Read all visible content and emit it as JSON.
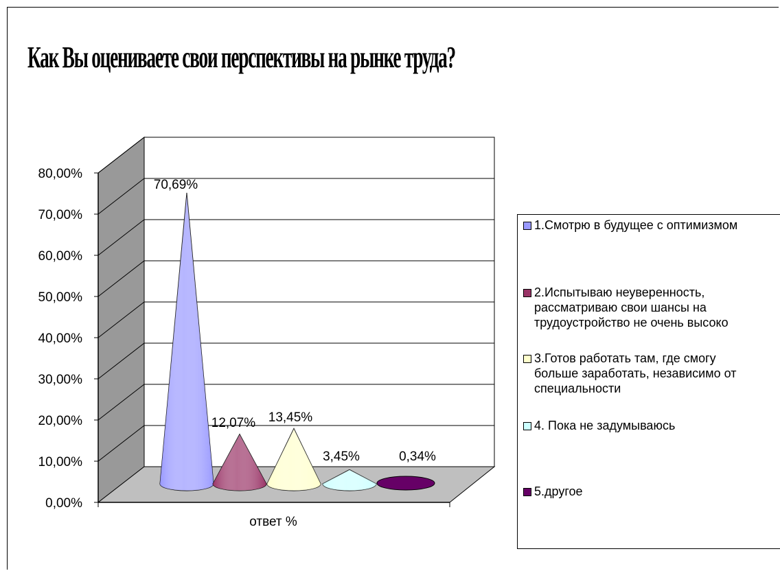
{
  "chart_data": {
    "type": "bar",
    "title": "Как Вы оцениваете свои перспективы на рынке труда?",
    "xlabel": "ответ %",
    "ylim": [
      0,
      80
    ],
    "y_ticks": [
      "0,00%",
      "10,00%",
      "20,00%",
      "30,00%",
      "40,00%",
      "50,00%",
      "60,00%",
      "70,00%",
      "80,00%"
    ],
    "grid": true,
    "legend_position": "right",
    "categories": [
      "ответ %"
    ],
    "series": [
      {
        "name": "1.Смотрю в будущее с оптимизмом",
        "values": [
          70.69
        ],
        "label": "70,69%",
        "color": "#9999ff"
      },
      {
        "name": "2.Испытываю неуверенность, рассматриваю свои шансы на трудоустройство не очень высоко",
        "values": [
          12.07
        ],
        "label": "12,07%",
        "color": "#993366"
      },
      {
        "name": "3.Готов работать там, где смогу больше заработать, независимо от специальности",
        "values": [
          13.45
        ],
        "label": "13,45%",
        "color": "#ffffcc"
      },
      {
        "name": "4. Пока не задумываюсь",
        "values": [
          3.45
        ],
        "label": "3,45%",
        "color": "#ccffff"
      },
      {
        "name": "5.другое",
        "values": [
          0.34
        ],
        "label": "0,34%",
        "color": "#660066"
      }
    ]
  }
}
